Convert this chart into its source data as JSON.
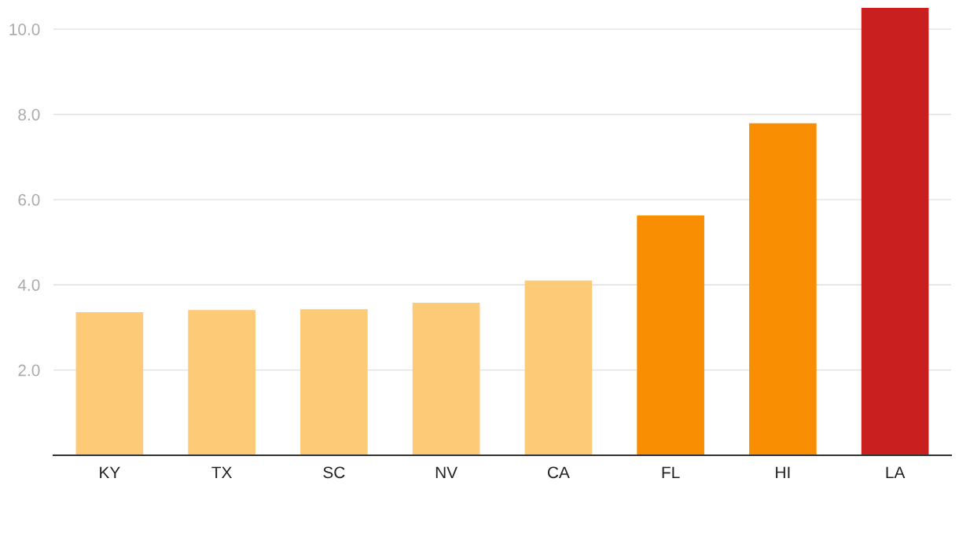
{
  "chart_data": {
    "type": "bar",
    "categories": [
      "KY",
      "TX",
      "SC",
      "NV",
      "CA",
      "FL",
      "HI",
      "LA"
    ],
    "values": [
      3.36,
      3.41,
      3.43,
      3.58,
      4.1,
      5.63,
      7.79,
      10.5
    ],
    "colors": [
      "#fdca78",
      "#fdca78",
      "#fdca78",
      "#fdca78",
      "#fdca78",
      "#f98e02",
      "#f98e02",
      "#c91f1f"
    ],
    "ylim": [
      0,
      10.5
    ],
    "yticks": [
      {
        "value": 2,
        "label": "2.0"
      },
      {
        "value": 4,
        "label": "4.0"
      },
      {
        "value": 6,
        "label": "6.0"
      },
      {
        "value": 8,
        "label": "8.0"
      },
      {
        "value": 10,
        "label": "10.0"
      }
    ],
    "grid": "y"
  }
}
